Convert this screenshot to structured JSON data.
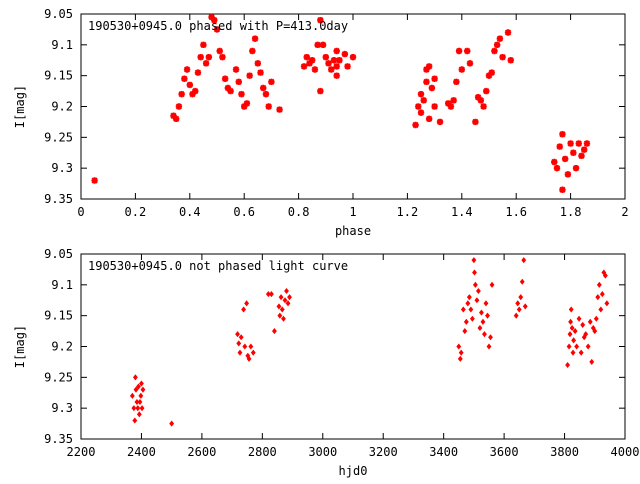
{
  "chart_data": [
    {
      "type": "scatter",
      "title": "190530+0945.0 phased with P=413.0day",
      "xlabel": "phase",
      "ylabel": "I[mag]",
      "xlim": [
        0,
        2
      ],
      "ylim": [
        9.05,
        9.35
      ],
      "y_inverted": true,
      "x_ticks": [
        "0",
        "0.2",
        "0.4",
        "0.6",
        "0.8",
        "1",
        "1.2",
        "1.4",
        "1.6",
        "1.8",
        "2"
      ],
      "y_ticks": [
        "9.05",
        "9.1",
        "9.15",
        "9.2",
        "9.25",
        "9.3",
        "9.35"
      ],
      "marker": "star",
      "color": "#ff0000",
      "grid": false,
      "points": [
        [
          0.05,
          9.32
        ],
        [
          0.34,
          9.215
        ],
        [
          0.35,
          9.22
        ],
        [
          0.36,
          9.2
        ],
        [
          0.37,
          9.18
        ],
        [
          0.38,
          9.155
        ],
        [
          0.39,
          9.14
        ],
        [
          0.4,
          9.165
        ],
        [
          0.41,
          9.18
        ],
        [
          0.42,
          9.175
        ],
        [
          0.43,
          9.145
        ],
        [
          0.44,
          9.12
        ],
        [
          0.45,
          9.1
        ],
        [
          0.46,
          9.13
        ],
        [
          0.47,
          9.12
        ],
        [
          0.48,
          9.055
        ],
        [
          0.49,
          9.06
        ],
        [
          0.5,
          9.075
        ],
        [
          0.51,
          9.11
        ],
        [
          0.52,
          9.12
        ],
        [
          0.53,
          9.155
        ],
        [
          0.54,
          9.17
        ],
        [
          0.55,
          9.175
        ],
        [
          0.57,
          9.14
        ],
        [
          0.58,
          9.16
        ],
        [
          0.59,
          9.18
        ],
        [
          0.6,
          9.2
        ],
        [
          0.61,
          9.195
        ],
        [
          0.62,
          9.15
        ],
        [
          0.63,
          9.11
        ],
        [
          0.64,
          9.09
        ],
        [
          0.65,
          9.13
        ],
        [
          0.66,
          9.145
        ],
        [
          0.67,
          9.17
        ],
        [
          0.68,
          9.18
        ],
        [
          0.69,
          9.2
        ],
        [
          0.7,
          9.16
        ],
        [
          0.73,
          9.205
        ],
        [
          0.82,
          9.135
        ],
        [
          0.83,
          9.12
        ],
        [
          0.84,
          9.13
        ],
        [
          0.85,
          9.125
        ],
        [
          0.86,
          9.14
        ],
        [
          0.87,
          9.1
        ],
        [
          0.88,
          9.06
        ],
        [
          0.88,
          9.175
        ],
        [
          0.89,
          9.1
        ],
        [
          0.9,
          9.12
        ],
        [
          0.91,
          9.13
        ],
        [
          0.92,
          9.14
        ],
        [
          0.93,
          9.125
        ],
        [
          0.94,
          9.11
        ],
        [
          0.94,
          9.135
        ],
        [
          0.94,
          9.15
        ],
        [
          0.95,
          9.125
        ],
        [
          0.97,
          9.115
        ],
        [
          0.98,
          9.135
        ],
        [
          1.0,
          9.12
        ],
        [
          1.23,
          9.23
        ],
        [
          1.24,
          9.2
        ],
        [
          1.25,
          9.18
        ],
        [
          1.25,
          9.21
        ],
        [
          1.26,
          9.19
        ],
        [
          1.27,
          9.16
        ],
        [
          1.27,
          9.14
        ],
        [
          1.28,
          9.135
        ],
        [
          1.28,
          9.22
        ],
        [
          1.29,
          9.17
        ],
        [
          1.3,
          9.155
        ],
        [
          1.3,
          9.2
        ],
        [
          1.32,
          9.225
        ],
        [
          1.35,
          9.195
        ],
        [
          1.36,
          9.2
        ],
        [
          1.37,
          9.19
        ],
        [
          1.38,
          9.16
        ],
        [
          1.39,
          9.11
        ],
        [
          1.4,
          9.14
        ],
        [
          1.42,
          9.11
        ],
        [
          1.43,
          9.13
        ],
        [
          1.45,
          9.225
        ],
        [
          1.46,
          9.185
        ],
        [
          1.47,
          9.19
        ],
        [
          1.48,
          9.2
        ],
        [
          1.49,
          9.175
        ],
        [
          1.5,
          9.15
        ],
        [
          1.51,
          9.145
        ],
        [
          1.52,
          9.11
        ],
        [
          1.53,
          9.1
        ],
        [
          1.54,
          9.09
        ],
        [
          1.55,
          9.12
        ],
        [
          1.57,
          9.08
        ],
        [
          1.58,
          9.125
        ],
        [
          1.74,
          9.29
        ],
        [
          1.75,
          9.3
        ],
        [
          1.76,
          9.265
        ],
        [
          1.77,
          9.245
        ],
        [
          1.77,
          9.335
        ],
        [
          1.78,
          9.285
        ],
        [
          1.79,
          9.31
        ],
        [
          1.8,
          9.26
        ],
        [
          1.81,
          9.275
        ],
        [
          1.82,
          9.3
        ],
        [
          1.83,
          9.26
        ],
        [
          1.84,
          9.28
        ],
        [
          1.85,
          9.27
        ],
        [
          1.86,
          9.26
        ]
      ]
    },
    {
      "type": "scatter",
      "title": "190530+0945.0 not phased light curve",
      "xlabel": "hjd0",
      "ylabel": "I[mag]",
      "xlim": [
        2200,
        4000
      ],
      "ylim": [
        9.05,
        9.35
      ],
      "y_inverted": true,
      "x_ticks": [
        "2200",
        "2400",
        "2600",
        "2800",
        "3000",
        "3200",
        "3400",
        "3600",
        "3800",
        "4000"
      ],
      "y_ticks": [
        "9.05",
        "9.1",
        "9.15",
        "9.2",
        "9.25",
        "9.3",
        "9.35"
      ],
      "marker": "diamond",
      "color": "#ff0000",
      "grid": false,
      "points": [
        [
          2370,
          9.28
        ],
        [
          2375,
          9.3
        ],
        [
          2378,
          9.32
        ],
        [
          2380,
          9.25
        ],
        [
          2382,
          9.27
        ],
        [
          2385,
          9.29
        ],
        [
          2388,
          9.3
        ],
        [
          2390,
          9.265
        ],
        [
          2393,
          9.31
        ],
        [
          2395,
          9.29
        ],
        [
          2398,
          9.28
        ],
        [
          2400,
          9.26
        ],
        [
          2402,
          9.3
        ],
        [
          2405,
          9.27
        ],
        [
          2500,
          9.325
        ],
        [
          2718,
          9.18
        ],
        [
          2722,
          9.195
        ],
        [
          2726,
          9.21
        ],
        [
          2730,
          9.185
        ],
        [
          2738,
          9.14
        ],
        [
          2742,
          9.2
        ],
        [
          2748,
          9.13
        ],
        [
          2752,
          9.215
        ],
        [
          2756,
          9.22
        ],
        [
          2762,
          9.2
        ],
        [
          2770,
          9.21
        ],
        [
          2820,
          9.115
        ],
        [
          2830,
          9.115
        ],
        [
          2840,
          9.175
        ],
        [
          2855,
          9.135
        ],
        [
          2858,
          9.15
        ],
        [
          2862,
          9.12
        ],
        [
          2866,
          9.14
        ],
        [
          2870,
          9.155
        ],
        [
          2875,
          9.125
        ],
        [
          2880,
          9.11
        ],
        [
          2885,
          9.13
        ],
        [
          2890,
          9.12
        ],
        [
          3450,
          9.2
        ],
        [
          3455,
          9.22
        ],
        [
          3458,
          9.21
        ],
        [
          3465,
          9.14
        ],
        [
          3470,
          9.175
        ],
        [
          3475,
          9.16
        ],
        [
          3480,
          9.13
        ],
        [
          3485,
          9.12
        ],
        [
          3490,
          9.14
        ],
        [
          3495,
          9.155
        ],
        [
          3500,
          9.06
        ],
        [
          3502,
          9.08
        ],
        [
          3505,
          9.1
        ],
        [
          3510,
          9.125
        ],
        [
          3515,
          9.11
        ],
        [
          3520,
          9.17
        ],
        [
          3525,
          9.145
        ],
        [
          3530,
          9.16
        ],
        [
          3535,
          9.18
        ],
        [
          3540,
          9.13
        ],
        [
          3545,
          9.15
        ],
        [
          3550,
          9.2
        ],
        [
          3555,
          9.185
        ],
        [
          3560,
          9.1
        ],
        [
          3640,
          9.15
        ],
        [
          3645,
          9.13
        ],
        [
          3650,
          9.14
        ],
        [
          3655,
          9.12
        ],
        [
          3660,
          9.095
        ],
        [
          3665,
          9.06
        ],
        [
          3670,
          9.135
        ],
        [
          3810,
          9.23
        ],
        [
          3815,
          9.2
        ],
        [
          3818,
          9.18
        ],
        [
          3820,
          9.16
        ],
        [
          3822,
          9.14
        ],
        [
          3825,
          9.17
        ],
        [
          3828,
          9.21
        ],
        [
          3830,
          9.19
        ],
        [
          3835,
          9.175
        ],
        [
          3840,
          9.2
        ],
        [
          3848,
          9.155
        ],
        [
          3855,
          9.21
        ],
        [
          3860,
          9.165
        ],
        [
          3865,
          9.185
        ],
        [
          3870,
          9.18
        ],
        [
          3878,
          9.2
        ],
        [
          3885,
          9.16
        ],
        [
          3890,
          9.225
        ],
        [
          3895,
          9.17
        ],
        [
          3900,
          9.175
        ],
        [
          3905,
          9.155
        ],
        [
          3910,
          9.12
        ],
        [
          3915,
          9.1
        ],
        [
          3920,
          9.14
        ],
        [
          3925,
          9.115
        ],
        [
          3930,
          9.08
        ],
        [
          3935,
          9.085
        ],
        [
          3940,
          9.13
        ]
      ]
    }
  ]
}
